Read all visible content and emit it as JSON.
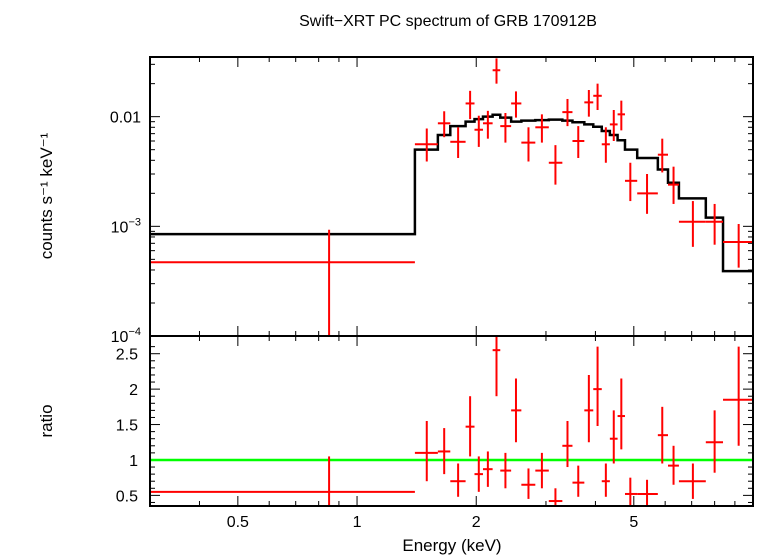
{
  "chart_data": {
    "title": "Swift−XRT PC spectrum of GRB 170912B",
    "type": "scatter",
    "xlabel": "Energy (keV)",
    "xscale": "log",
    "xlim": [
      0.3,
      10
    ],
    "xticks": [
      0.5,
      1,
      2,
      5
    ],
    "xtick_labels": [
      "0.5",
      "1",
      "2",
      "5"
    ],
    "panels": [
      {
        "name": "spectrum",
        "ylabel": "counts s⁻¹ keV⁻¹",
        "yscale": "log",
        "ylim": [
          0.0001,
          0.035
        ],
        "yticks": [
          0.0001,
          0.001,
          0.01
        ],
        "ytick_labels": [
          {
            "base": "10",
            "exp": "−4"
          },
          {
            "base": "10",
            "exp": "−3"
          },
          {
            "text": "0.01"
          }
        ],
        "series": [
          {
            "kind": "errorbar",
            "color": "#ff0000",
            "points": [
              {
                "xlo": 0.3,
                "xhi": 1.4,
                "x": 0.85,
                "y": 0.00047,
                "ylo": 0.0001,
                "yhi": 0.00093
              },
              {
                "xlo": 1.4,
                "xhi": 1.6,
                "x": 1.5,
                "y": 0.0056,
                "ylo": 0.0039,
                "yhi": 0.0078
              },
              {
                "xlo": 1.6,
                "xhi": 1.72,
                "x": 1.66,
                "y": 0.0087,
                "ylo": 0.0065,
                "yhi": 0.0112
              },
              {
                "xlo": 1.72,
                "xhi": 1.88,
                "x": 1.8,
                "y": 0.0059,
                "ylo": 0.0042,
                "yhi": 0.008
              },
              {
                "xlo": 1.88,
                "xhi": 1.98,
                "x": 1.93,
                "y": 0.0132,
                "ylo": 0.0095,
                "yhi": 0.0172
              },
              {
                "xlo": 1.98,
                "xhi": 2.08,
                "x": 2.03,
                "y": 0.0076,
                "ylo": 0.0053,
                "yhi": 0.0102
              },
              {
                "xlo": 2.08,
                "xhi": 2.2,
                "x": 2.14,
                "y": 0.0087,
                "ylo": 0.0063,
                "yhi": 0.0113
              },
              {
                "xlo": 2.2,
                "xhi": 2.3,
                "x": 2.25,
                "y": 0.0265,
                "ylo": 0.02,
                "yhi": 0.034
              },
              {
                "xlo": 2.3,
                "xhi": 2.45,
                "x": 2.37,
                "y": 0.0082,
                "ylo": 0.0058,
                "yhi": 0.0108
              },
              {
                "xlo": 2.45,
                "xhi": 2.6,
                "x": 2.52,
                "y": 0.0132,
                "ylo": 0.0098,
                "yhi": 0.017
              },
              {
                "xlo": 2.6,
                "xhi": 2.82,
                "x": 2.71,
                "y": 0.0058,
                "ylo": 0.0039,
                "yhi": 0.008
              },
              {
                "xlo": 2.82,
                "xhi": 3.05,
                "x": 2.93,
                "y": 0.008,
                "ylo": 0.0058,
                "yhi": 0.0105
              },
              {
                "xlo": 3.05,
                "xhi": 3.3,
                "x": 3.17,
                "y": 0.0038,
                "ylo": 0.0024,
                "yhi": 0.0055
              },
              {
                "xlo": 3.3,
                "xhi": 3.5,
                "x": 3.4,
                "y": 0.011,
                "ylo": 0.0082,
                "yhi": 0.0145
              },
              {
                "xlo": 3.5,
                "xhi": 3.75,
                "x": 3.62,
                "y": 0.006,
                "ylo": 0.0042,
                "yhi": 0.0082
              },
              {
                "xlo": 3.75,
                "xhi": 3.95,
                "x": 3.85,
                "y": 0.0135,
                "ylo": 0.01,
                "yhi": 0.0175
              },
              {
                "xlo": 3.95,
                "xhi": 4.15,
                "x": 4.05,
                "y": 0.0155,
                "ylo": 0.0115,
                "yhi": 0.02
              },
              {
                "xlo": 4.15,
                "xhi": 4.35,
                "x": 4.25,
                "y": 0.0056,
                "ylo": 0.0038,
                "yhi": 0.008
              },
              {
                "xlo": 4.35,
                "xhi": 4.55,
                "x": 4.45,
                "y": 0.0085,
                "ylo": 0.006,
                "yhi": 0.0115
              },
              {
                "xlo": 4.55,
                "xhi": 4.75,
                "x": 4.65,
                "y": 0.0105,
                "ylo": 0.0075,
                "yhi": 0.014
              },
              {
                "xlo": 4.75,
                "xhi": 5.1,
                "x": 4.9,
                "y": 0.0026,
                "ylo": 0.0017,
                "yhi": 0.0038
              },
              {
                "xlo": 5.1,
                "xhi": 5.75,
                "x": 5.4,
                "y": 0.002,
                "ylo": 0.0013,
                "yhi": 0.003
              },
              {
                "xlo": 5.75,
                "xhi": 6.1,
                "x": 5.9,
                "y": 0.0045,
                "ylo": 0.0031,
                "yhi": 0.0063
              },
              {
                "xlo": 6.1,
                "xhi": 6.5,
                "x": 6.3,
                "y": 0.0024,
                "ylo": 0.0016,
                "yhi": 0.0035
              },
              {
                "xlo": 6.5,
                "xhi": 7.6,
                "x": 7.05,
                "y": 0.0011,
                "ylo": 0.00065,
                "yhi": 0.0017
              },
              {
                "xlo": 7.6,
                "xhi": 8.4,
                "x": 8.0,
                "y": 0.0011,
                "ylo": 0.00068,
                "yhi": 0.0016
              },
              {
                "xlo": 8.4,
                "xhi": 10.0,
                "x": 9.2,
                "y": 0.00072,
                "ylo": 0.00042,
                "yhi": 0.00105
              }
            ]
          },
          {
            "kind": "step",
            "color": "#000000",
            "edges": [
              0.3,
              1.4,
              1.6,
              1.72,
              1.88,
              1.98,
              2.08,
              2.2,
              2.3,
              2.45,
              2.6,
              2.82,
              3.05,
              3.3,
              3.5,
              3.75,
              3.95,
              4.15,
              4.35,
              4.55,
              4.75,
              5.1,
              5.75,
              6.1,
              6.5,
              7.6,
              8.4,
              10.0
            ],
            "values": [
              0.00085,
              0.005,
              0.0068,
              0.0082,
              0.009,
              0.0095,
              0.01,
              0.0104,
              0.0098,
              0.009,
              0.0092,
              0.0093,
              0.0094,
              0.0092,
              0.0089,
              0.0085,
              0.0081,
              0.0074,
              0.0068,
              0.0061,
              0.005,
              0.0042,
              0.0033,
              0.0025,
              0.0018,
              0.0012,
              0.00039
            ]
          }
        ]
      },
      {
        "name": "ratio",
        "ylabel": "ratio",
        "yscale": "linear",
        "ylim": [
          0.35,
          2.75
        ],
        "yticks": [
          0.5,
          1,
          1.5,
          2,
          2.5
        ],
        "ytick_labels": [
          "0.5",
          "1",
          "1.5",
          "2",
          "2.5"
        ],
        "series": [
          {
            "kind": "errorbar",
            "color": "#ff0000",
            "points": [
              {
                "xlo": 0.3,
                "xhi": 1.4,
                "x": 0.85,
                "y": 0.55,
                "ylo": 0.35,
                "yhi": 1.05
              },
              {
                "xlo": 1.4,
                "xhi": 1.6,
                "x": 1.5,
                "y": 1.1,
                "ylo": 0.7,
                "yhi": 1.55
              },
              {
                "xlo": 1.6,
                "xhi": 1.72,
                "x": 1.66,
                "y": 1.12,
                "ylo": 0.8,
                "yhi": 1.45
              },
              {
                "xlo": 1.72,
                "xhi": 1.88,
                "x": 1.8,
                "y": 0.7,
                "ylo": 0.48,
                "yhi": 0.95
              },
              {
                "xlo": 1.88,
                "xhi": 1.98,
                "x": 1.93,
                "y": 1.47,
                "ylo": 1.05,
                "yhi": 1.9
              },
              {
                "xlo": 1.98,
                "xhi": 2.08,
                "x": 2.03,
                "y": 0.8,
                "ylo": 0.55,
                "yhi": 1.05
              },
              {
                "xlo": 2.08,
                "xhi": 2.2,
                "x": 2.14,
                "y": 0.87,
                "ylo": 0.62,
                "yhi": 1.12
              },
              {
                "xlo": 2.2,
                "xhi": 2.3,
                "x": 2.25,
                "y": 2.55,
                "ylo": 1.9,
                "yhi": 3.2
              },
              {
                "xlo": 2.3,
                "xhi": 2.45,
                "x": 2.37,
                "y": 0.85,
                "ylo": 0.6,
                "yhi": 1.1
              },
              {
                "xlo": 2.45,
                "xhi": 2.6,
                "x": 2.52,
                "y": 1.7,
                "ylo": 1.25,
                "yhi": 2.15
              },
              {
                "xlo": 2.6,
                "xhi": 2.82,
                "x": 2.71,
                "y": 0.65,
                "ylo": 0.45,
                "yhi": 0.88
              },
              {
                "xlo": 2.82,
                "xhi": 3.05,
                "x": 2.93,
                "y": 0.85,
                "ylo": 0.6,
                "yhi": 1.1
              },
              {
                "xlo": 3.05,
                "xhi": 3.3,
                "x": 3.17,
                "y": 0.42,
                "ylo": 0.28,
                "yhi": 0.6
              },
              {
                "xlo": 3.3,
                "xhi": 3.5,
                "x": 3.4,
                "y": 1.2,
                "ylo": 0.9,
                "yhi": 1.55
              },
              {
                "xlo": 3.5,
                "xhi": 3.75,
                "x": 3.62,
                "y": 0.68,
                "ylo": 0.48,
                "yhi": 0.92
              },
              {
                "xlo": 3.75,
                "xhi": 3.95,
                "x": 3.85,
                "y": 1.7,
                "ylo": 1.25,
                "yhi": 2.2
              },
              {
                "xlo": 3.95,
                "xhi": 4.15,
                "x": 4.05,
                "y": 2.0,
                "ylo": 1.48,
                "yhi": 2.6
              },
              {
                "xlo": 4.15,
                "xhi": 4.35,
                "x": 4.25,
                "y": 0.7,
                "ylo": 0.48,
                "yhi": 0.95
              },
              {
                "xlo": 4.35,
                "xhi": 4.55,
                "x": 4.45,
                "y": 1.3,
                "ylo": 0.95,
                "yhi": 1.7
              },
              {
                "xlo": 4.55,
                "xhi": 4.75,
                "x": 4.65,
                "y": 1.62,
                "ylo": 1.15,
                "yhi": 2.15
              },
              {
                "xlo": 4.75,
                "xhi": 5.1,
                "x": 4.9,
                "y": 0.52,
                "ylo": 0.35,
                "yhi": 0.75
              },
              {
                "xlo": 5.1,
                "xhi": 5.75,
                "x": 5.4,
                "y": 0.52,
                "ylo": 0.35,
                "yhi": 0.72
              },
              {
                "xlo": 5.75,
                "xhi": 6.1,
                "x": 5.9,
                "y": 1.35,
                "ylo": 0.95,
                "yhi": 1.75
              },
              {
                "xlo": 6.1,
                "xhi": 6.5,
                "x": 6.3,
                "y": 0.92,
                "ylo": 0.65,
                "yhi": 1.2
              },
              {
                "xlo": 6.5,
                "xhi": 7.6,
                "x": 7.05,
                "y": 0.7,
                "ylo": 0.45,
                "yhi": 0.95
              },
              {
                "xlo": 7.6,
                "xhi": 8.4,
                "x": 8.0,
                "y": 1.25,
                "ylo": 0.82,
                "yhi": 1.7
              },
              {
                "xlo": 8.4,
                "xhi": 10.0,
                "x": 9.2,
                "y": 1.85,
                "ylo": 1.2,
                "yhi": 2.6
              }
            ]
          },
          {
            "kind": "hline",
            "color": "#00ff00",
            "y": 1
          }
        ]
      }
    ]
  }
}
